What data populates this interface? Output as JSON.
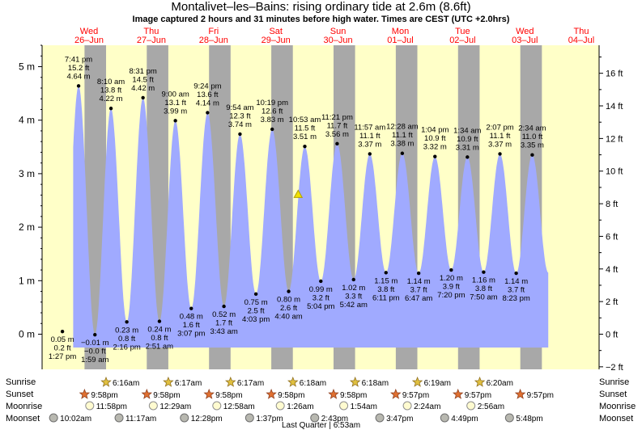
{
  "title": "Montalivet–les–Bains: rising  ordinary tide at 2.6m (8.6ft)",
  "subtitle": "Image captured 2 hours and 31 minutes before high water. Times are CEST (UTC +2.0hrs)",
  "colors": {
    "day": "#ffffc8",
    "night": "#a8a8a8",
    "water": "#a0aaff",
    "date_label": "#ff0000",
    "marker": "#f0e000"
  },
  "days": [
    {
      "dow": "Wed",
      "date": "26–Jun"
    },
    {
      "dow": "Thu",
      "date": "27–Jun"
    },
    {
      "dow": "Fri",
      "date": "28–Jun"
    },
    {
      "dow": "Sat",
      "date": "29–Jun"
    },
    {
      "dow": "Sun",
      "date": "30–Jun"
    },
    {
      "dow": "Mon",
      "date": "01–Jul"
    },
    {
      "dow": "Tue",
      "date": "02–Jul"
    },
    {
      "dow": "Wed",
      "date": "03–Jul"
    },
    {
      "dow": "Thu",
      "date": "04–Jul"
    }
  ],
  "chart_data": {
    "type": "area",
    "title": "Montalivet–les–Bains: rising  ordinary tide at 2.6m (8.6ft)",
    "ylabel_left": "m",
    "ylabel_right": "ft",
    "ylim_m": [
      -0.35,
      5.35
    ],
    "yticks_m": [
      "0 m",
      "1 m",
      "2 m",
      "3 m",
      "4 m",
      "5 m"
    ],
    "yticks_ft": [
      "−2 ft",
      "0 ft",
      "2 ft",
      "4 ft",
      "6 ft",
      "8 ft",
      "10 ft",
      "12 ft",
      "14 ft",
      "16 ft"
    ],
    "extremes": [
      {
        "type": "low",
        "day": 0,
        "time": "1:27 pm",
        "h": 0.05,
        "m": "0.05 m",
        "ft": "0.2 ft"
      },
      {
        "type": "high",
        "day": 0,
        "time": "7:41 pm",
        "h": 4.64,
        "m": "4.64 m",
        "ft": "15.2 ft"
      },
      {
        "type": "low",
        "day": 1,
        "time": "1:59 am",
        "h": -0.01,
        "m": "−0.01 m",
        "ft": "−0.0 ft"
      },
      {
        "type": "high",
        "day": 1,
        "time": "8:10 am",
        "h": 4.22,
        "m": "4.22 m",
        "ft": "13.8 ft"
      },
      {
        "type": "low",
        "day": 1,
        "time": "2:16 pm",
        "h": 0.23,
        "m": "0.23 m",
        "ft": "0.8 ft"
      },
      {
        "type": "high",
        "day": 1,
        "time": "8:31 pm",
        "h": 4.42,
        "m": "4.42 m",
        "ft": "14.5 ft"
      },
      {
        "type": "low",
        "day": 2,
        "time": "2:51 am",
        "h": 0.24,
        "m": "0.24 m",
        "ft": "0.8 ft"
      },
      {
        "type": "high",
        "day": 2,
        "time": "9:00 am",
        "h": 3.99,
        "m": "3.99 m",
        "ft": "13.1 ft"
      },
      {
        "type": "low",
        "day": 2,
        "time": "3:07 pm",
        "h": 0.48,
        "m": "0.48 m",
        "ft": "1.6 ft"
      },
      {
        "type": "high",
        "day": 2,
        "time": "9:24 pm",
        "h": 4.14,
        "m": "4.14 m",
        "ft": "13.6 ft"
      },
      {
        "type": "low",
        "day": 3,
        "time": "3:43 am",
        "h": 0.52,
        "m": "0.52 m",
        "ft": "1.7 ft"
      },
      {
        "type": "high",
        "day": 3,
        "time": "9:54 am",
        "h": 3.74,
        "m": "3.74 m",
        "ft": "12.3 ft"
      },
      {
        "type": "low",
        "day": 3,
        "time": "4:03 pm",
        "h": 0.75,
        "m": "0.75 m",
        "ft": "2.5 ft"
      },
      {
        "type": "high",
        "day": 3,
        "time": "10:19 pm",
        "h": 3.83,
        "m": "3.83 m",
        "ft": "12.6 ft"
      },
      {
        "type": "low",
        "day": 4,
        "time": "4:40 am",
        "h": 0.8,
        "m": "0.80 m",
        "ft": "2.6 ft"
      },
      {
        "type": "high",
        "day": 4,
        "time": "10:53 am",
        "h": 3.51,
        "m": "3.51 m",
        "ft": "11.5 ft"
      },
      {
        "type": "low",
        "day": 4,
        "time": "5:04 pm",
        "h": 0.99,
        "m": "0.99 m",
        "ft": "3.2 ft"
      },
      {
        "type": "high",
        "day": 4,
        "time": "11:21 pm",
        "h": 3.56,
        "m": "3.56 m",
        "ft": "11.7 ft"
      },
      {
        "type": "low",
        "day": 5,
        "time": "5:42 am",
        "h": 1.02,
        "m": "1.02 m",
        "ft": "3.3 ft"
      },
      {
        "type": "high",
        "day": 5,
        "time": "11:57 am",
        "h": 3.37,
        "m": "3.37 m",
        "ft": "11.1 ft"
      },
      {
        "type": "low",
        "day": 5,
        "time": "6:11 pm",
        "h": 1.15,
        "m": "1.15 m",
        "ft": "3.8 ft"
      },
      {
        "type": "high",
        "day": 6,
        "time": "12:28 am",
        "h": 3.38,
        "m": "3.38 m",
        "ft": "11.1 ft"
      },
      {
        "type": "low",
        "day": 6,
        "time": "6:47 am",
        "h": 1.14,
        "m": "1.14 m",
        "ft": "3.7 ft"
      },
      {
        "type": "high",
        "day": 6,
        "time": "1:04 pm",
        "h": 3.32,
        "m": "3.32 m",
        "ft": "10.9 ft"
      },
      {
        "type": "low",
        "day": 6,
        "time": "7:20 pm",
        "h": 1.2,
        "m": "1.20 m",
        "ft": "3.9 ft"
      },
      {
        "type": "high",
        "day": 7,
        "time": "1:34 am",
        "h": 3.31,
        "m": "3.31 m",
        "ft": "10.9 ft"
      },
      {
        "type": "low",
        "day": 7,
        "time": "7:50 am",
        "h": 1.16,
        "m": "1.16 m",
        "ft": "3.8 ft"
      },
      {
        "type": "high",
        "day": 7,
        "time": "2:07 pm",
        "h": 3.37,
        "m": "3.37 m",
        "ft": "11.1 ft"
      },
      {
        "type": "low",
        "day": 7,
        "time": "8:23 pm",
        "h": 1.14,
        "m": "1.14 m",
        "ft": "3.7 ft"
      },
      {
        "type": "high",
        "day": 8,
        "time": "2:34 am",
        "h": 3.35,
        "m": "3.35 m",
        "ft": "11.0 ft"
      }
    ],
    "current": {
      "day": 4,
      "time": "8:20 am",
      "h": 2.6
    }
  },
  "astro": {
    "row_labels": [
      "Sunrise",
      "Sunset",
      "Moonrise",
      "Moonset"
    ],
    "sunrise": [
      {
        "day": 1,
        "text": "6:16am"
      },
      {
        "day": 2,
        "text": "6:17am"
      },
      {
        "day": 3,
        "text": "6:17am"
      },
      {
        "day": 4,
        "text": "6:18am"
      },
      {
        "day": 5,
        "text": "6:18am"
      },
      {
        "day": 6,
        "text": "6:19am"
      },
      {
        "day": 7,
        "text": "6:20am"
      }
    ],
    "sunset": [
      {
        "day": 0,
        "text": "9:58pm"
      },
      {
        "day": 1,
        "text": "9:58pm"
      },
      {
        "day": 2,
        "text": "9:58pm"
      },
      {
        "day": 3,
        "text": "9:58pm"
      },
      {
        "day": 4,
        "text": "9:58pm"
      },
      {
        "day": 5,
        "text": "9:57pm"
      },
      {
        "day": 6,
        "text": "9:57pm"
      },
      {
        "day": 7,
        "text": "9:57pm"
      }
    ],
    "moonrise": [
      {
        "day": 0,
        "text": "11:58pm"
      },
      {
        "day": 1,
        "text": "12:29am"
      },
      {
        "day": 2,
        "text": "12:58am"
      },
      {
        "day": 3,
        "text": "1:26am"
      },
      {
        "day": 4,
        "text": "1:54am"
      },
      {
        "day": 5,
        "text": "2:24am"
      },
      {
        "day": 6,
        "text": "2:56am"
      }
    ],
    "moonset": [
      {
        "day": 0,
        "text": "10:02am"
      },
      {
        "day": 1,
        "text": "11:17am"
      },
      {
        "day": 2,
        "text": "12:28pm"
      },
      {
        "day": 3,
        "text": "1:37pm"
      },
      {
        "day": 4,
        "text": "2:43pm"
      },
      {
        "day": 5,
        "text": "3:47pm"
      },
      {
        "day": 6,
        "text": "4:49pm"
      },
      {
        "day": 7,
        "text": "5:48pm"
      }
    ],
    "moon_phase": "Last Quarter | 6:53am"
  }
}
